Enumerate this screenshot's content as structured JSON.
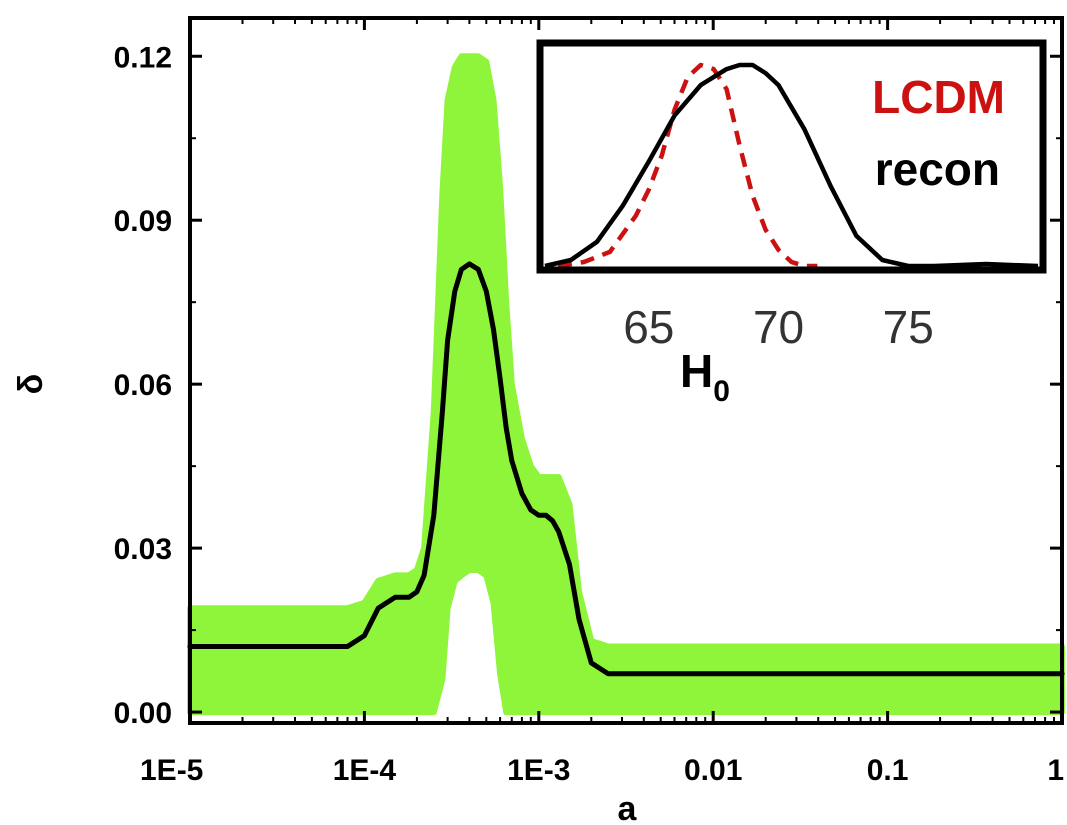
{
  "chart_data": [
    {
      "type": "line",
      "xlabel": "a",
      "ylabel": "δ",
      "xscale": "log",
      "xlim": [
        1e-05,
        1
      ],
      "ylim": [
        -0.002,
        0.127
      ],
      "xticks": [
        {
          "value": 1e-05,
          "label": "1E-5"
        },
        {
          "value": 0.0001,
          "label": "1E-4"
        },
        {
          "value": 0.001,
          "label": "1E-3"
        },
        {
          "value": 0.01,
          "label": "0.01"
        },
        {
          "value": 0.1,
          "label": "0.1"
        },
        {
          "value": 1,
          "label": "1"
        }
      ],
      "yticks": [
        {
          "value": 0.0,
          "label": "0.00"
        },
        {
          "value": 0.03,
          "label": "0.03"
        },
        {
          "value": 0.06,
          "label": "0.06"
        },
        {
          "value": 0.09,
          "label": "0.09"
        },
        {
          "value": 0.12,
          "label": "0.12"
        }
      ],
      "grid": false,
      "colors": {
        "band": "#8ef53a",
        "line": "#000000"
      },
      "series": [
        {
          "x": [
            1e-05,
            5e-05,
            8e-05,
            0.0001,
            0.00012,
            0.00015,
            0.00018,
            0.0002,
            0.00022,
            0.00025,
            0.00028,
            0.0003,
            0.00033,
            0.00036,
            0.0004,
            0.00045,
            0.0005,
            0.00055,
            0.0006,
            0.00065,
            0.0007,
            0.0008,
            0.0009,
            0.001,
            0.0011,
            0.0012,
            0.0013,
            0.0015,
            0.0017,
            0.002,
            0.0025,
            0.003,
            0.004,
            0.01,
            0.1,
            1
          ],
          "values": [
            0.012,
            0.012,
            0.012,
            0.014,
            0.019,
            0.021,
            0.021,
            0.022,
            0.025,
            0.036,
            0.055,
            0.068,
            0.077,
            0.081,
            0.082,
            0.081,
            0.077,
            0.07,
            0.061,
            0.052,
            0.046,
            0.04,
            0.037,
            0.036,
            0.036,
            0.035,
            0.033,
            0.027,
            0.017,
            0.009,
            0.007,
            0.007,
            0.007,
            0.007,
            0.007,
            0.007
          ]
        }
      ],
      "band": {
        "x": [
          1e-05,
          5e-05,
          8e-05,
          0.0001,
          0.00012,
          0.00015,
          0.00018,
          0.0002,
          0.00022,
          0.00025,
          0.00028,
          0.0003,
          0.00033,
          0.00036,
          0.0004,
          0.00045,
          0.0005,
          0.00055,
          0.0006,
          0.00065,
          0.0007,
          0.0008,
          0.0009,
          0.001,
          0.0011,
          0.0012,
          0.0013,
          0.0015,
          0.0017,
          0.002,
          0.0025,
          0.003,
          0.004,
          0.01,
          0.1,
          1
        ],
        "upper": [
          0.019,
          0.019,
          0.019,
          0.02,
          0.024,
          0.025,
          0.025,
          0.026,
          0.03,
          0.055,
          0.095,
          0.112,
          0.118,
          0.12,
          0.12,
          0.12,
          0.119,
          0.112,
          0.096,
          0.075,
          0.06,
          0.05,
          0.045,
          0.043,
          0.043,
          0.043,
          0.043,
          0.038,
          0.022,
          0.013,
          0.012,
          0.012,
          0.012,
          0.012,
          0.012,
          0.012
        ],
        "lower": [
          0.0,
          0.0,
          0.0,
          0.0,
          0.0,
          0.0,
          0.0,
          0.0,
          0.0,
          0.0,
          0.006,
          0.019,
          0.024,
          0.025,
          0.026,
          0.026,
          0.025,
          0.02,
          0.007,
          0.0,
          0.0,
          0.0,
          0.0,
          0.0,
          0.0,
          0.0,
          0.0,
          0.0,
          0.0,
          0.0,
          0.0,
          0.0,
          0.0,
          0.0,
          0.0,
          0.0
        ]
      }
    },
    {
      "type": "line",
      "inset": true,
      "xlabel_main": "H",
      "xlabel_sub": "0",
      "xlim": [
        61,
        80
      ],
      "ylim": [
        0,
        1.05
      ],
      "xticks": [
        {
          "value": 65,
          "label": "65"
        },
        {
          "value": 70,
          "label": "70"
        },
        {
          "value": 75,
          "label": "75"
        }
      ],
      "legend_placement": "top-right",
      "series": [
        {
          "name": "LCDM",
          "color": "#cc1111",
          "dash": "dashed",
          "x": [
            61.5,
            62.5,
            63.5,
            64.5,
            65.0,
            65.5,
            66.0,
            66.5,
            67.0,
            67.5,
            68.0,
            68.5,
            69.0,
            69.5,
            70.0,
            70.5,
            71.0,
            71.5
          ],
          "values": [
            0.0,
            0.02,
            0.07,
            0.25,
            0.38,
            0.55,
            0.78,
            0.94,
            1.0,
            0.98,
            0.88,
            0.6,
            0.35,
            0.18,
            0.08,
            0.02,
            0.0,
            0.0
          ]
        },
        {
          "name": "recon",
          "color": "#000000",
          "dash": "solid",
          "x": [
            61.0,
            62.0,
            63.0,
            64.0,
            65.0,
            66.0,
            67.0,
            68.0,
            68.5,
            69.0,
            69.5,
            70.0,
            71.0,
            72.0,
            73.0,
            74.0,
            75.0,
            76.0,
            78.0,
            80.0
          ],
          "values": [
            0.0,
            0.03,
            0.12,
            0.3,
            0.52,
            0.75,
            0.9,
            0.98,
            1.0,
            1.0,
            0.96,
            0.9,
            0.68,
            0.4,
            0.15,
            0.03,
            0.0,
            0.0,
            0.01,
            0.0
          ]
        }
      ]
    }
  ]
}
